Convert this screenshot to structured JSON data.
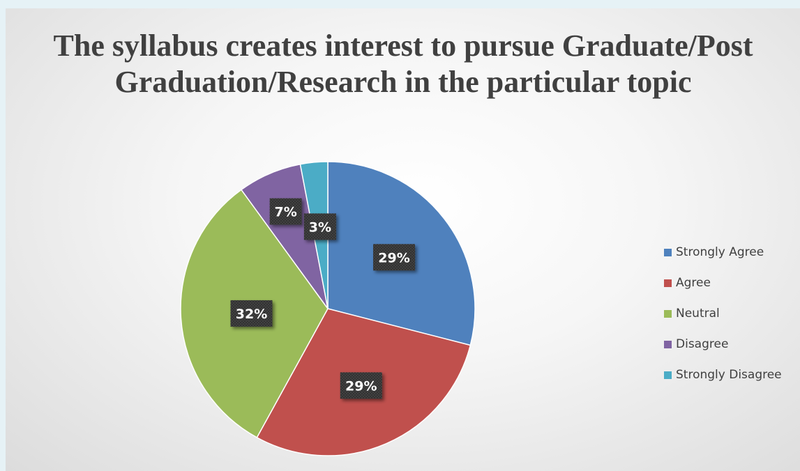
{
  "chart_data": {
    "type": "pie",
    "title": "The syllabus creates interest to pursue Graduate/Post Graduation/Research in the particular topic",
    "categories": [
      "Strongly Agree",
      "Agree",
      "Neutral",
      "Disagree",
      "Strongly Disagree"
    ],
    "values": [
      29,
      29,
      32,
      7,
      3
    ],
    "labels": [
      "29%",
      "29%",
      "32%",
      "7%",
      "3%"
    ],
    "colors": [
      "#4f81bd",
      "#c0504d",
      "#9bbb59",
      "#8064a2",
      "#4bacc6"
    ],
    "legend": "right"
  }
}
